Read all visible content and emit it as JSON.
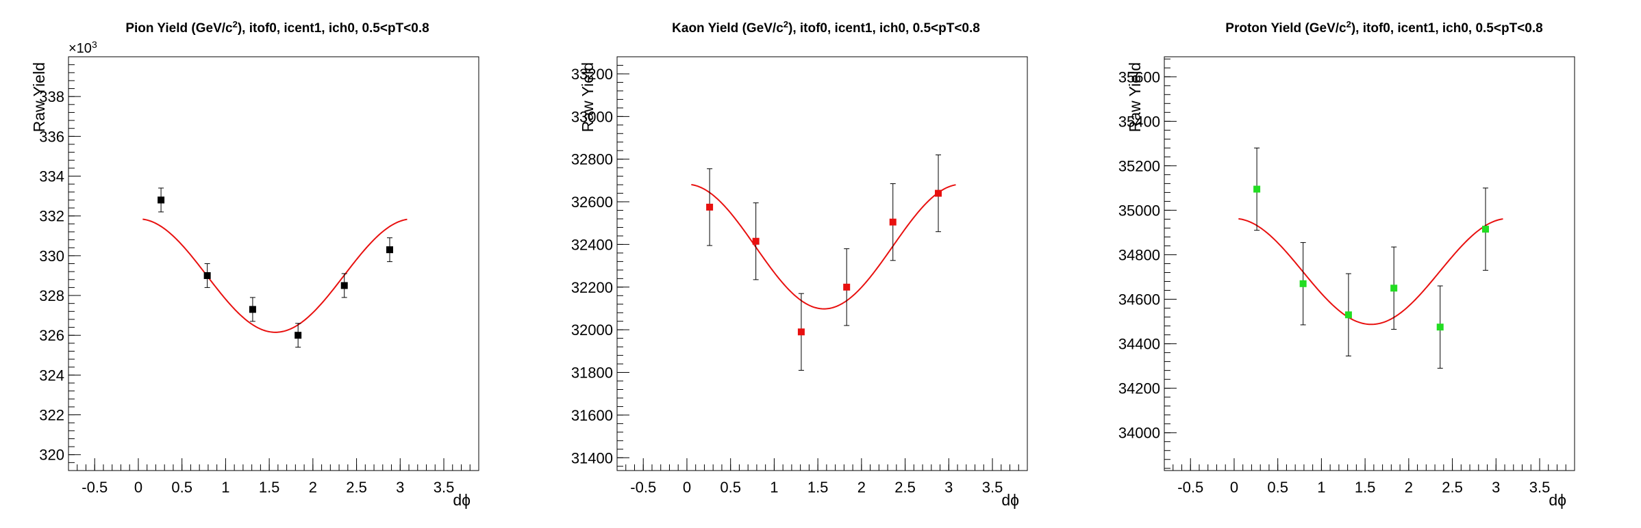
{
  "chart_data": [
    {
      "type": "scatter",
      "title_main": "Pion Yield (GeV/c",
      "title_sup": "2",
      "title_tail": "), itof0, icent1, ich0, 0.5<pT<0.8",
      "xlabel": "dϕ",
      "ylabel": "Raw Yield",
      "exponent_label": "×10",
      "exponent_sup": "3",
      "xlim": [
        -0.8,
        3.9
      ],
      "ylim": [
        319.2,
        340.0
      ],
      "xticks": [
        -0.5,
        0,
        0.5,
        1,
        1.5,
        2,
        2.5,
        3,
        3.5
      ],
      "xtick_labels": [
        "-0.5",
        "0",
        "0.5",
        "1",
        "1.5",
        "2",
        "2.5",
        "3",
        "3.5"
      ],
      "yticks": [
        320,
        322,
        324,
        326,
        328,
        330,
        332,
        334,
        336,
        338
      ],
      "ytick_labels": [
        "320",
        "322",
        "324",
        "326",
        "328",
        "330",
        "332",
        "334",
        "336",
        "338"
      ],
      "marker_color": "#000000",
      "fit_color": "#e8100f",
      "points": {
        "x": [
          0.26,
          0.79,
          1.31,
          1.83,
          2.36,
          2.88
        ],
        "y": [
          332.8,
          329.0,
          327.3,
          326.0,
          328.5,
          330.3
        ],
        "err": [
          0.6,
          0.6,
          0.6,
          0.6,
          0.6,
          0.6
        ]
      },
      "fit": {
        "function": "A + B*cos(2x)",
        "A": 329.0,
        "B": 2.85,
        "xrange": [
          0.05,
          3.08
        ]
      },
      "grid": false,
      "legend": "none"
    },
    {
      "type": "scatter",
      "title_main": "Kaon Yield (GeV/c",
      "title_sup": "2",
      "title_tail": "), itof0, icent1, ich0, 0.5<pT<0.8",
      "xlabel": "dϕ",
      "ylabel": "Raw Yield",
      "exponent_label": "",
      "exponent_sup": "",
      "xlim": [
        -0.8,
        3.9
      ],
      "ylim": [
        31340,
        33280
      ],
      "xticks": [
        -0.5,
        0,
        0.5,
        1,
        1.5,
        2,
        2.5,
        3,
        3.5
      ],
      "xtick_labels": [
        "-0.5",
        "0",
        "0.5",
        "1",
        "1.5",
        "2",
        "2.5",
        "3",
        "3.5"
      ],
      "yticks": [
        31400,
        31600,
        31800,
        32000,
        32200,
        32400,
        32600,
        32800,
        33000,
        33200
      ],
      "ytick_labels": [
        "31400",
        "31600",
        "31800",
        "32000",
        "32200",
        "32400",
        "32600",
        "32800",
        "33000",
        "33200"
      ],
      "marker_color": "#e8100f",
      "fit_color": "#e8100f",
      "points": {
        "x": [
          0.26,
          0.79,
          1.31,
          1.83,
          2.36,
          2.88
        ],
        "y": [
          32575,
          32415,
          31990,
          32200,
          32505,
          32640
        ],
        "err": [
          180,
          180,
          180,
          180,
          180,
          180
        ]
      },
      "fit": {
        "function": "A + B*cos(2x)",
        "A": 32390,
        "B": 292,
        "xrange": [
          0.05,
          3.08
        ]
      },
      "grid": false,
      "legend": "none"
    },
    {
      "type": "scatter",
      "title_main": "Proton Yield (GeV/c",
      "title_sup": "2",
      "title_tail": "), itof0, icent1, ich0, 0.5<pT<0.8",
      "xlabel": "dϕ",
      "ylabel": "Raw Yield",
      "exponent_label": "",
      "exponent_sup": "",
      "xlim": [
        -0.8,
        3.9
      ],
      "ylim": [
        33830,
        35690
      ],
      "xticks": [
        -0.5,
        0,
        0.5,
        1,
        1.5,
        2,
        2.5,
        3,
        3.5
      ],
      "xtick_labels": [
        "-0.5",
        "0",
        "0.5",
        "1",
        "1.5",
        "2",
        "2.5",
        "3",
        "3.5"
      ],
      "yticks": [
        34000,
        34200,
        34400,
        34600,
        34800,
        35000,
        35200,
        35400,
        35600
      ],
      "ytick_labels": [
        "34000",
        "34200",
        "34400",
        "34600",
        "34800",
        "35000",
        "35200",
        "35400",
        "35600"
      ],
      "marker_color": "#22dd22",
      "fit_color": "#e8100f",
      "points": {
        "x": [
          0.26,
          0.79,
          1.31,
          1.83,
          2.36,
          2.88
        ],
        "y": [
          35095,
          34670,
          34530,
          34650,
          34475,
          34915
        ],
        "err": [
          185,
          185,
          185,
          185,
          185,
          185
        ]
      },
      "fit": {
        "function": "A + B*cos(2x)",
        "A": 34725,
        "B": 238,
        "xrange": [
          0.05,
          3.08
        ]
      },
      "grid": false,
      "legend": "none"
    }
  ]
}
